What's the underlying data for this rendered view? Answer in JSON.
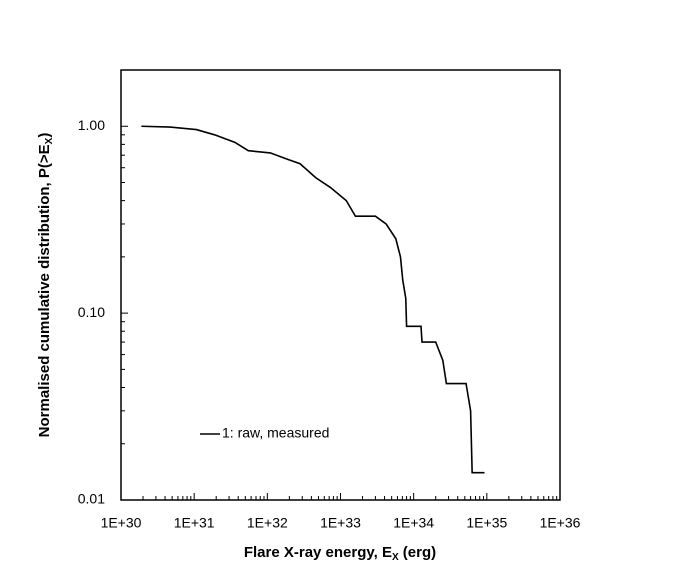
{
  "chart_data": {
    "type": "line",
    "xlabel": [
      "Flare X-ray energy, E",
      "X",
      " (erg)"
    ],
    "ylabel": [
      "Normalised cumulative distribution, P(>E",
      "X",
      ")"
    ],
    "x": [
      1.9e+30,
      4.7e+30,
      1.07e+31,
      1.9e+31,
      3.6e+31,
      5.5e+31,
      1.1e+32,
      1.8e+32,
      2.8e+32,
      4.6e+32,
      7.3e+32,
      1.2e+33,
      1.6e+33,
      3e+33,
      4.2e+33,
      5.7e+33,
      6.6e+33,
      7.1e+33,
      7.8e+33,
      8e+33,
      1.26e+34,
      1.3e+34,
      2e+34,
      2.5e+34,
      2.8e+34,
      5.2e+34,
      6e+34,
      6.3e+34,
      9.3e+34
    ],
    "series": [
      {
        "name": "1: raw, measured",
        "color": "#000000",
        "values": [
          1.0,
          0.99,
          0.96,
          0.9,
          0.82,
          0.74,
          0.72,
          0.67,
          0.63,
          0.53,
          0.47,
          0.4,
          0.33,
          0.33,
          0.3,
          0.25,
          0.2,
          0.15,
          0.12,
          0.085,
          0.085,
          0.07,
          0.07,
          0.056,
          0.042,
          0.042,
          0.03,
          0.014,
          0.014
        ]
      }
    ],
    "xlog": true,
    "ylog": true,
    "xlim": [
      1e+30,
      1e+36
    ],
    "xticks": [
      {
        "value": 1e+30,
        "label": "1E+30"
      },
      {
        "value": 1e+31,
        "label": "1E+31"
      },
      {
        "value": 1e+32,
        "label": "1E+32"
      },
      {
        "value": 1e+33,
        "label": "1E+33"
      },
      {
        "value": 1e+34,
        "label": "1E+34"
      },
      {
        "value": 1e+35,
        "label": "1E+35"
      },
      {
        "value": 1e+36,
        "label": "1E+36"
      }
    ],
    "ylim": [
      0.01,
      2
    ],
    "yticks": [
      {
        "value": 0.01,
        "label": "0.01"
      },
      {
        "value": 0.1,
        "label": "0.10"
      },
      {
        "value": 1,
        "label": "1.00"
      }
    ],
    "grid": false
  }
}
